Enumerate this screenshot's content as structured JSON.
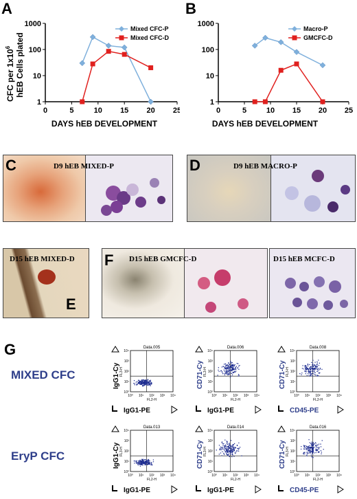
{
  "panels": {
    "A": "A",
    "B": "B",
    "C": "C",
    "D": "D",
    "E": "E",
    "F": "F",
    "G": "G"
  },
  "chart_data": [
    {
      "id": "A",
      "type": "line",
      "ylabel": "CFC per 1x10⁶ hEB Cells plated",
      "ylabel_line1": "CFC per 1x10",
      "ylabel_sup": "6",
      "ylabel_line2": "hEB Cells plated",
      "xlabel": "DAYS hEB DEVELOPMENT",
      "xlim": [
        0,
        25
      ],
      "ylim": [
        1,
        1000
      ],
      "ylog": true,
      "xticks": [
        "0",
        "5",
        "10",
        "15",
        "20",
        "25"
      ],
      "yticks": [
        "1",
        "10",
        "100",
        "1000"
      ],
      "legend_position": "top-right",
      "series": [
        {
          "name": "Mixed CFC-P",
          "color": "#7fb0dc",
          "marker": "diamond",
          "x": [
            7,
            9,
            12,
            15,
            20
          ],
          "y": [
            30,
            300,
            140,
            120,
            1
          ]
        },
        {
          "name": "Mixed CFC-D",
          "color": "#e0201e",
          "marker": "square",
          "x": [
            7,
            9,
            12,
            15,
            20
          ],
          "y": [
            1,
            28,
            85,
            65,
            20
          ]
        }
      ]
    },
    {
      "id": "B",
      "type": "line",
      "xlabel": "DAYS hEB DEVELOPMENT",
      "xlim": [
        0,
        25
      ],
      "ylim": [
        1,
        1000
      ],
      "ylog": true,
      "xticks": [
        "0",
        "5",
        "10",
        "15",
        "20",
        "25"
      ],
      "yticks": [
        "1",
        "10",
        "100",
        "1000"
      ],
      "legend_position": "top-right",
      "series": [
        {
          "name": "Macro-P",
          "color": "#7fb0dc",
          "marker": "diamond",
          "x": [
            7,
            9,
            12,
            15,
            20
          ],
          "y": [
            140,
            280,
            190,
            80,
            25
          ]
        },
        {
          "name": "GMCFC-D",
          "color": "#e0201e",
          "marker": "square",
          "x": [
            7,
            9,
            12,
            15,
            20
          ],
          "y": [
            1,
            1,
            16,
            28,
            1
          ]
        }
      ]
    }
  ],
  "photos": {
    "c_caption": "D9 hEB MIXED-P",
    "d_caption": "D9 hEB MACRO-P",
    "e_caption": "D15 hEB MIXED-D",
    "f_caption": "D15 hEB GMCFC-D",
    "f2_caption": "D15 hEB MCFC-D"
  },
  "flow": {
    "row1_label": "MIXED CFC",
    "row2_label": "EryP CFC",
    "plots": [
      {
        "title": "Data.005",
        "y": "IgG1-Cy",
        "x": "IgG1-PE",
        "fl_y": "FL3-H",
        "fl_x": "FL2-H"
      },
      {
        "title": "Data.006",
        "y": "CD71-Cy",
        "x": "IgG1-PE",
        "fl_y": "FL3-H",
        "fl_x": "FL2-H"
      },
      {
        "title": "Data.008",
        "y": "CD71-Cy",
        "x": "CD45-PE",
        "fl_y": "FL3-H",
        "fl_x": "FL2-H"
      },
      {
        "title": "Data.013",
        "y": "IgG1-Cy",
        "x": "IgG1-PE",
        "fl_y": "FL3-H",
        "fl_x": "FL2-H"
      },
      {
        "title": "Data.014",
        "y": "CD71-Cy",
        "x": "IgG1-PE",
        "fl_y": "FL3-H",
        "fl_x": "FL2-H"
      },
      {
        "title": "Data.016",
        "y": "CD71-Cy",
        "x": "CD45-PE",
        "fl_y": "FL3-H",
        "fl_x": "FL2-H"
      }
    ],
    "decades": [
      "10⁰",
      "10¹",
      "10²",
      "10³",
      "10⁴"
    ]
  }
}
